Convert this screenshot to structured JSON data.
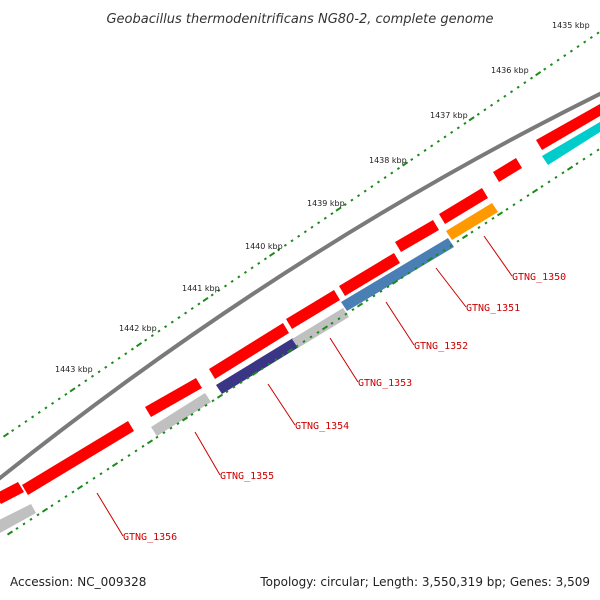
{
  "title": "Geobacillus thermodenitrificans NG80-2, complete genome",
  "footer": {
    "accession": "Accession: NC_009328",
    "summary": "Topology: circular; Length: 3,550,319 bp; Genes: 3,509"
  },
  "scale_ticks": [
    "1435 kbp",
    "1436 kbp",
    "1437 kbp",
    "1438 kbp",
    "1439 kbp",
    "1440 kbp",
    "1441 kbp",
    "1442 kbp",
    "1443 kbp"
  ],
  "genes": [
    {
      "name": "GTNG_1350",
      "color": "#ff9900"
    },
    {
      "name": "GTNG_1351",
      "color": "#4a7fb5"
    },
    {
      "name": "GTNG_1352",
      "color": "#4a7fb5"
    },
    {
      "name": "GTNG_1353",
      "color": "#c0c0c0"
    },
    {
      "name": "GTNG_1354",
      "color": "#3b3585"
    },
    {
      "name": "GTNG_1355",
      "color": "#c0c0c0"
    },
    {
      "name": "GTNG_1356",
      "color": "#c0c0c0"
    }
  ],
  "colors": {
    "backbone": "#7a7a7a",
    "forward_cds": "#ff0000",
    "tick": "#1a8a1a",
    "label": "#cc0000",
    "cyan_cds": "#00cccc"
  }
}
